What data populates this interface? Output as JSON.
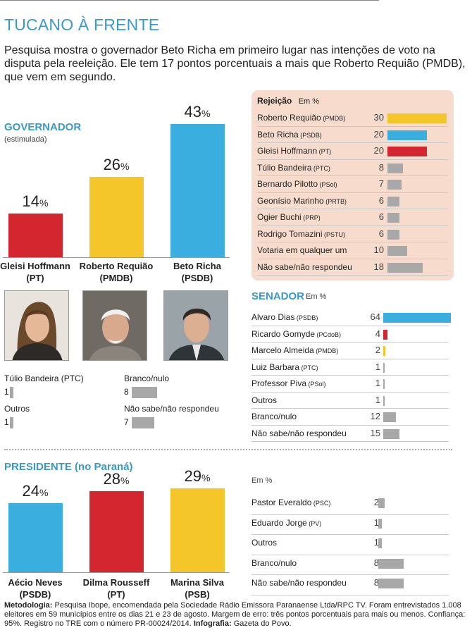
{
  "title": "TUCANO À FRENTE",
  "subtitle": "Pesquisa mostra o governador Beto Richa em primeiro lugar nas intenções de voto na disputa pela reeleição. Ele tem 17 pontos porcentuais a mais que Roberto Requião (PMDB), que vem em segundo.",
  "colors": {
    "red": "#d4262f",
    "yellow": "#f4c62a",
    "blue": "#3aaedf",
    "gray": "#a8a8a8",
    "accent": "#3a9ac7",
    "panel": "#f7dccd"
  },
  "governador": {
    "heading": "GOVERNADOR",
    "subheading": "(estimulada)",
    "others": [
      {
        "name": "Túlio Bandeira (PTC)",
        "value": 1
      },
      {
        "name": "Outros",
        "value": 1
      },
      {
        "name": "Branco/nulo",
        "value": 8
      },
      {
        "name": "Não sabe/não respondeu",
        "value": 7
      }
    ]
  },
  "rejeicao": {
    "heading": "Rejeição",
    "unit": "Em %"
  },
  "senador": {
    "heading": "SENADOR",
    "unit": "Em %"
  },
  "presidente": {
    "heading": "PRESIDENTE (no Paraná)",
    "unit": "Em %"
  },
  "footer": {
    "label": "Metodologia:",
    "text": "Pesquisa Ibope, encomendada pela Sociedade Rádio Emissora Paranaense Ltda/RPC TV. Foram entrevistados 1.008 eleitores em 59 municípios entre os dias 21 e 23 de agosto. Margem de erro: três pontos porcentuais para mais ou menos. Confiança: 95%. Registro no TRE com o número PR-00024/2014.",
    "credit_label": "Infografia:",
    "credit": "Gazeta do Povo."
  },
  "chart_data": [
    {
      "id": "governador",
      "type": "bar",
      "title": "GOVERNADOR (estimulada)",
      "unit": "%",
      "ylim": [
        0,
        43
      ],
      "series": [
        {
          "name": "Gleisi Hoffmann",
          "party": "(PT)",
          "value": 14,
          "color": "#d4262f"
        },
        {
          "name": "Roberto Requião",
          "party": "(PMDB)",
          "value": 26,
          "color": "#f4c62a"
        },
        {
          "name": "Beto Richa",
          "party": "(PSDB)",
          "value": 43,
          "color": "#3aaedf"
        }
      ]
    },
    {
      "id": "rejeicao",
      "type": "bar",
      "title": "Rejeição",
      "unit": "Em %",
      "ylim": [
        0,
        30
      ],
      "series": [
        {
          "name": "Roberto Requião",
          "party": "(PMDB)",
          "value": 30,
          "color": "#f4c62a"
        },
        {
          "name": "Beto Richa",
          "party": "(PSDB)",
          "value": 20,
          "color": "#3aaedf"
        },
        {
          "name": "Gleisi Hoffmann",
          "party": "(PT)",
          "value": 20,
          "color": "#d4262f"
        },
        {
          "name": "Túlio Bandeira",
          "party": "(PTC)",
          "value": 8,
          "color": "#a8a8a8"
        },
        {
          "name": "Bernardo Pilotto",
          "party": "(PSol)",
          "value": 7,
          "color": "#a8a8a8"
        },
        {
          "name": "Geonísio Marinho",
          "party": "(PRTB)",
          "value": 6,
          "color": "#a8a8a8"
        },
        {
          "name": "Ogier Buchi",
          "party": "(PRP)",
          "value": 6,
          "color": "#a8a8a8"
        },
        {
          "name": "Rodrigo Tomazini",
          "party": "(PSTU)",
          "value": 6,
          "color": "#a8a8a8"
        },
        {
          "name": "Votaria em qualquer um",
          "party": "",
          "value": 10,
          "color": "#a8a8a8"
        },
        {
          "name": "Não sabe/não respondeu",
          "party": "",
          "value": 18,
          "color": "#a8a8a8"
        }
      ]
    },
    {
      "id": "senador",
      "type": "bar",
      "title": "SENADOR",
      "unit": "Em %",
      "ylim": [
        0,
        64
      ],
      "series": [
        {
          "name": "Alvaro Dias",
          "party": "(PSDB)",
          "value": 64,
          "color": "#3aaedf"
        },
        {
          "name": "Ricardo Gomyde",
          "party": "(PCdoB)",
          "value": 4,
          "color": "#d4262f"
        },
        {
          "name": "Marcelo Almeida",
          "party": "(PMDB)",
          "value": 2,
          "color": "#f4c62a"
        },
        {
          "name": "Luiz Barbara",
          "party": "(PTC)",
          "value": 1,
          "color": "#a8a8a8"
        },
        {
          "name": "Professor Piva",
          "party": "(PSol)",
          "value": 1,
          "color": "#a8a8a8"
        },
        {
          "name": "Outros",
          "party": "",
          "value": 1,
          "color": "#a8a8a8"
        },
        {
          "name": "Branco/nulo",
          "party": "",
          "value": 12,
          "color": "#a8a8a8"
        },
        {
          "name": "Não sabe/não respondeu",
          "party": "",
          "value": 15,
          "color": "#a8a8a8"
        }
      ]
    },
    {
      "id": "presidente",
      "type": "bar",
      "title": "PRESIDENTE (no Paraná)",
      "unit": "%",
      "ylim": [
        0,
        29
      ],
      "series": [
        {
          "name": "Aécio Neves",
          "party": "(PSDB)",
          "value": 24,
          "color": "#3aaedf"
        },
        {
          "name": "Dilma Rousseff",
          "party": "(PT)",
          "value": 28,
          "color": "#d4262f"
        },
        {
          "name": "Marina Silva",
          "party": "(PSB)",
          "value": 29,
          "color": "#f4c62a"
        }
      ]
    },
    {
      "id": "presidente-outros",
      "type": "bar",
      "title": "Em %",
      "unit": "Em %",
      "ylim": [
        0,
        8
      ],
      "series": [
        {
          "name": "Pastor Everaldo",
          "party": "(PSC)",
          "value": 2,
          "color": "#a8a8a8"
        },
        {
          "name": "Eduardo Jorge",
          "party": "(PV)",
          "value": 1,
          "color": "#a8a8a8"
        },
        {
          "name": "Outros",
          "party": "",
          "value": 1,
          "color": "#a8a8a8"
        },
        {
          "name": "Branco/nulo",
          "party": "",
          "value": 8,
          "color": "#a8a8a8"
        },
        {
          "name": "Não sabe/não respondeu",
          "party": "",
          "value": 8,
          "color": "#a8a8a8"
        }
      ]
    }
  ]
}
